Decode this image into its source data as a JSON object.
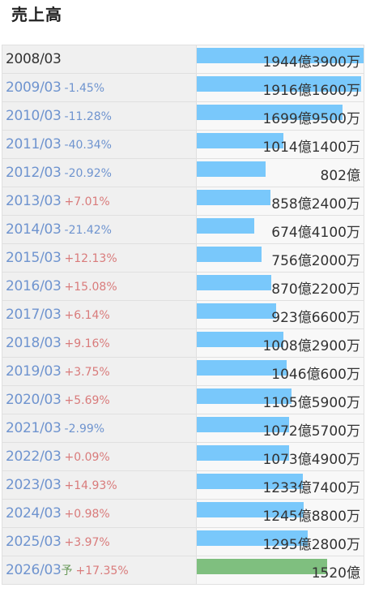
{
  "title": "売上高",
  "colors": {
    "bar": "#79c8fb",
    "forecast_bar": "#7fbf7f",
    "negative": "#6f94cf",
    "positive": "#d97b7b"
  },
  "chart_data": {
    "type": "bar",
    "orientation": "horizontal",
    "title": "売上高",
    "unit": "億円",
    "categories": [
      "2008/03",
      "2009/03",
      "2010/03",
      "2011/03",
      "2012/03",
      "2013/03",
      "2014/03",
      "2015/03",
      "2016/03",
      "2017/03",
      "2018/03",
      "2019/03",
      "2020/03",
      "2021/03",
      "2022/03",
      "2023/03",
      "2024/03",
      "2025/03",
      "2026/03"
    ],
    "values": [
      1944.39,
      1916.16,
      1699.95,
      1014.14,
      802,
      858.24,
      674.41,
      756.2,
      870.22,
      923.66,
      1008.29,
      1046.06,
      1105.59,
      1072.57,
      1073.49,
      1233.74,
      1245.88,
      1295.28,
      1520
    ],
    "max_value": 1944.39,
    "rows": [
      {
        "year": "2008/03",
        "change": "",
        "value_label": "1944億3900万"
      },
      {
        "year": "2009/03",
        "change": "-1.45%",
        "value_label": "1916億1600万"
      },
      {
        "year": "2010/03",
        "change": "-11.28%",
        "value_label": "1699億9500万"
      },
      {
        "year": "2011/03",
        "change": "-40.34%",
        "value_label": "1014億1400万"
      },
      {
        "year": "2012/03",
        "change": "-20.92%",
        "value_label": "802億"
      },
      {
        "year": "2013/03",
        "change": "+7.01%",
        "value_label": "858億2400万"
      },
      {
        "year": "2014/03",
        "change": "-21.42%",
        "value_label": "674億4100万"
      },
      {
        "year": "2015/03",
        "change": "+12.13%",
        "value_label": "756億2000万"
      },
      {
        "year": "2016/03",
        "change": "+15.08%",
        "value_label": "870億2200万"
      },
      {
        "year": "2017/03",
        "change": "+6.14%",
        "value_label": "923億6600万"
      },
      {
        "year": "2018/03",
        "change": "+9.16%",
        "value_label": "1008億2900万"
      },
      {
        "year": "2019/03",
        "change": "+3.75%",
        "value_label": "1046億600万"
      },
      {
        "year": "2020/03",
        "change": "+5.69%",
        "value_label": "1105億5900万"
      },
      {
        "year": "2021/03",
        "change": "-2.99%",
        "value_label": "1072億5700万"
      },
      {
        "year": "2022/03",
        "change": "+0.09%",
        "value_label": "1073億4900万"
      },
      {
        "year": "2023/03",
        "change": "+14.93%",
        "value_label": "1233億7400万"
      },
      {
        "year": "2024/03",
        "change": "+0.98%",
        "value_label": "1245億8800万"
      },
      {
        "year": "2025/03",
        "change": "+3.97%",
        "value_label": "1295億2800万"
      },
      {
        "year": "2026/03",
        "forecast_mark": "予",
        "change": "+17.35%",
        "value_label": "1520億",
        "forecast": true
      }
    ]
  }
}
